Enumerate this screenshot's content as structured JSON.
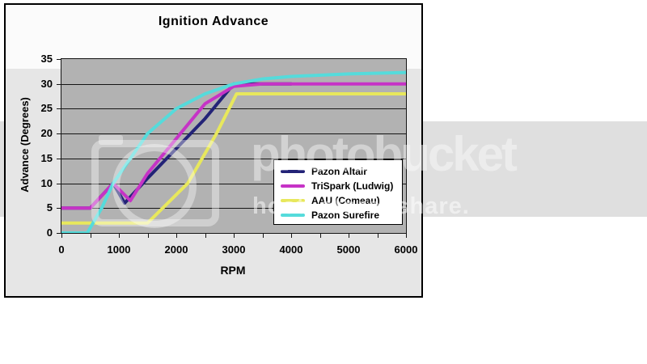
{
  "watermark": {
    "band_color": "#dfdfdf",
    "logo_text": "photobucket",
    "tagline": "host. store. share."
  },
  "chart": {
    "title": "Ignition Advance",
    "x_axis": {
      "label": "RPM",
      "tick_labels": [
        0,
        1000,
        2000,
        3000,
        4000,
        5000,
        6000
      ],
      "minor_tick_step": 500
    },
    "y_axis": {
      "label": "Advance (Degrees)",
      "tick_labels": [
        0,
        5,
        10,
        15,
        20,
        25,
        30,
        35
      ]
    },
    "plot_background": "#b2b2b2",
    "gridline_color": "#151515"
  },
  "chart_data": {
    "type": "line",
    "title": "Ignition Advance",
    "xlabel": "RPM",
    "ylabel": "Advance (Degrees)",
    "xlim": [
      0,
      6000
    ],
    "ylim": [
      0,
      35
    ],
    "grid": true,
    "legend_position": "inside-middle-right",
    "series": [
      {
        "name": "Pazon Altair",
        "color": "#232377",
        "points": [
          [
            0,
            5
          ],
          [
            500,
            5
          ],
          [
            900,
            10
          ],
          [
            1100,
            6
          ],
          [
            1500,
            11
          ],
          [
            2000,
            17
          ],
          [
            2500,
            23
          ],
          [
            3000,
            30
          ],
          [
            4000,
            30
          ]
        ]
      },
      {
        "name": "TriSpark (Ludwig)",
        "color": "#C633C6",
        "points": [
          [
            0,
            5
          ],
          [
            500,
            5
          ],
          [
            900,
            10
          ],
          [
            1200,
            6.5
          ],
          [
            1500,
            12
          ],
          [
            2000,
            19
          ],
          [
            2500,
            26
          ],
          [
            3000,
            29.5
          ],
          [
            3500,
            30
          ],
          [
            6000,
            30
          ]
        ]
      },
      {
        "name": "AAU (Comeau)",
        "color": "#E8E85C",
        "points": [
          [
            0,
            2
          ],
          [
            1500,
            2
          ],
          [
            2200,
            10
          ],
          [
            2700,
            20
          ],
          [
            3050,
            28
          ],
          [
            6000,
            28
          ]
        ]
      },
      {
        "name": "Pazon Surefire",
        "color": "#55DBDB",
        "points": [
          [
            0,
            0
          ],
          [
            450,
            0
          ],
          [
            700,
            5
          ],
          [
            900,
            10
          ],
          [
            1200,
            15
          ],
          [
            1500,
            20
          ],
          [
            2000,
            25
          ],
          [
            2500,
            28
          ],
          [
            3000,
            30
          ],
          [
            3500,
            31
          ],
          [
            4000,
            31.5
          ],
          [
            5000,
            32
          ],
          [
            6000,
            32.3
          ]
        ]
      }
    ]
  }
}
